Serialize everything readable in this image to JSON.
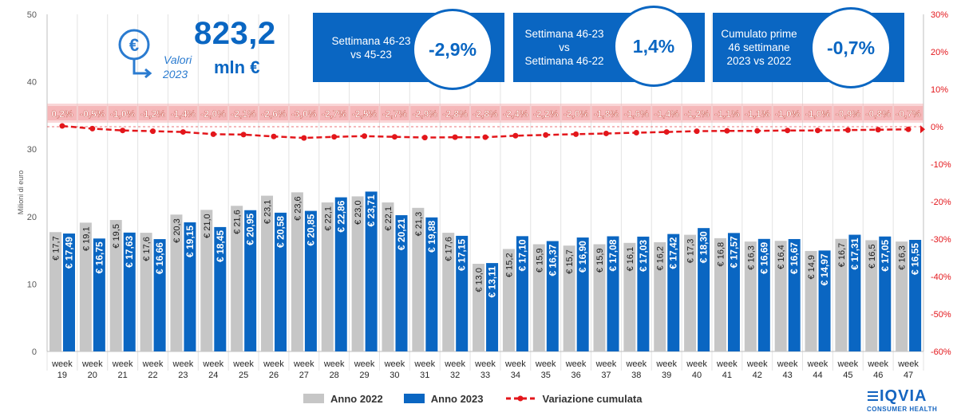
{
  "headline": {
    "value": "823,2",
    "unit": "mln €",
    "sub_line1": "Valori",
    "sub_line2": "2023"
  },
  "kpis": [
    {
      "label": "Settimana 46-23\nvs 45-23",
      "value": "-2,9%"
    },
    {
      "label": "Settimana 46-23\nvs\nSettimana 46-22",
      "value": "1,4%"
    },
    {
      "label": "Cumulato prime\n46 settimane\n2023 vs 2022",
      "value": "-0,7%"
    }
  ],
  "legend": {
    "s2022": "Anno 2022",
    "s2023": "Anno 2023",
    "cum": "Variazione cumulata"
  },
  "logo": {
    "main": "IQVIA",
    "sub": "CONSUMER HEALTH"
  },
  "colors": {
    "bar2022": "#c6c6c6",
    "bar2023": "#0a66c2",
    "cumline": "#e3161b",
    "cumlabel_bg": "#f4b4b6",
    "accent": "#0a66c2"
  },
  "chart_data": {
    "type": "bar",
    "ylabel": "Milioni di euro",
    "ylim": [
      0,
      50
    ],
    "y_ticks": [
      "0",
      "10",
      "20",
      "30",
      "40",
      "50"
    ],
    "y2lim": [
      -60,
      30
    ],
    "y2_ticks": [
      "-60%",
      "-50%",
      "-40%",
      "-30%",
      "-20%",
      "-10%",
      "0%",
      "10%",
      "20%",
      "30%"
    ],
    "categories": [
      "week\n19",
      "week\n20",
      "week\n21",
      "week\n22",
      "week\n23",
      "week\n24",
      "week\n25",
      "week\n26",
      "week\n27",
      "week\n28",
      "week\n29",
      "week\n30",
      "week\n31",
      "week\n32",
      "week\n33",
      "week\n34",
      "week\n35",
      "week\n36",
      "week\n37",
      "week\n38",
      "week\n39",
      "week\n40",
      "week\n41",
      "week\n42",
      "week\n43",
      "week\n44",
      "week\n45",
      "week\n46",
      "week\n47"
    ],
    "series": [
      {
        "name": "Anno 2022",
        "values": [
          17.7,
          19.1,
          19.5,
          17.6,
          20.3,
          21.0,
          21.6,
          23.1,
          23.6,
          22.1,
          23.0,
          22.1,
          21.3,
          17.6,
          13.0,
          15.2,
          15.9,
          15.7,
          15.9,
          16.1,
          16.2,
          17.3,
          16.8,
          16.3,
          16.4,
          14.9,
          16.7,
          16.5,
          16.3
        ],
        "labels": [
          "€ 17,7",
          "€ 19,1",
          "€ 19,5",
          "€ 17,6",
          "€ 20,3",
          "€ 21,0",
          "€ 21,6",
          "€ 23,1",
          "€ 23,6",
          "€ 22,1",
          "€ 23,0",
          "€ 22,1",
          "€ 21,3",
          "€ 17,6",
          "€ 13,0",
          "€ 15,2",
          "€ 15,9",
          "€ 15,7",
          "€ 15,9",
          "€ 16,1",
          "€ 16,2",
          "€ 17,3",
          "€ 16,8",
          "€ 16,3",
          "€ 16,4",
          "€ 14,9",
          "€ 16,7",
          "€ 16,5",
          "€ 16,3"
        ]
      },
      {
        "name": "Anno 2023",
        "values": [
          17.49,
          16.75,
          17.63,
          16.66,
          19.15,
          18.45,
          20.95,
          20.58,
          20.85,
          22.86,
          23.71,
          20.21,
          19.88,
          17.15,
          13.11,
          17.1,
          16.37,
          16.9,
          17.08,
          17.03,
          17.42,
          18.3,
          17.57,
          16.69,
          16.67,
          14.97,
          17.31,
          17.05,
          16.55
        ],
        "labels": [
          "€ 17,49",
          "€ 16,75",
          "€ 17,63",
          "€ 16,66",
          "€ 19,15",
          "€ 18,45",
          "€ 20,95",
          "€ 20,58",
          "€ 20,85",
          "€ 22,86",
          "€ 23,71",
          "€ 20,21",
          "€ 19,88",
          "€ 17,15",
          "€ 13,11",
          "€ 17,10",
          "€ 16,37",
          "€ 16,90",
          "€ 17,08",
          "€ 17,03",
          "€ 17,42",
          "€ 18,30",
          "€ 17,57",
          "€ 16,69",
          "€ 16,67",
          "€ 14,97",
          "€ 17,31",
          "€ 17,05",
          "€ 16,55"
        ]
      },
      {
        "name": "Variazione cumulata",
        "axis": "right",
        "values": [
          0.2,
          -0.5,
          -1.0,
          -1.2,
          -1.4,
          -2.0,
          -2.1,
          -2.6,
          -3.0,
          -2.7,
          -2.5,
          -2.7,
          -2.9,
          -2.8,
          -2.8,
          -2.4,
          -2.2,
          -2.0,
          -1.8,
          -1.6,
          -1.4,
          -1.2,
          -1.1,
          -1.1,
          -1.0,
          -1.0,
          -0.9,
          -0.8,
          -0.7
        ],
        "labels": [
          "0,2%",
          "-0,5%",
          "-1,0%",
          "-1,2%",
          "-1,4%",
          "-2,0%",
          "-2,1%",
          "-2,6%",
          "-3,0%",
          "-2,7%",
          "-2,5%",
          "-2,7%",
          "-2,9%",
          "-2,8%",
          "-2,8%",
          "-2,4%",
          "-2,2%",
          "-2,0%",
          "-1,8%",
          "-1,6%",
          "-1,4%",
          "-1,2%",
          "-1,1%",
          "-1,1%",
          "-1,0%",
          "-1,0%",
          "-0,9%",
          "-0,8%",
          "-0,7%"
        ]
      }
    ],
    "grid": "vertical"
  }
}
